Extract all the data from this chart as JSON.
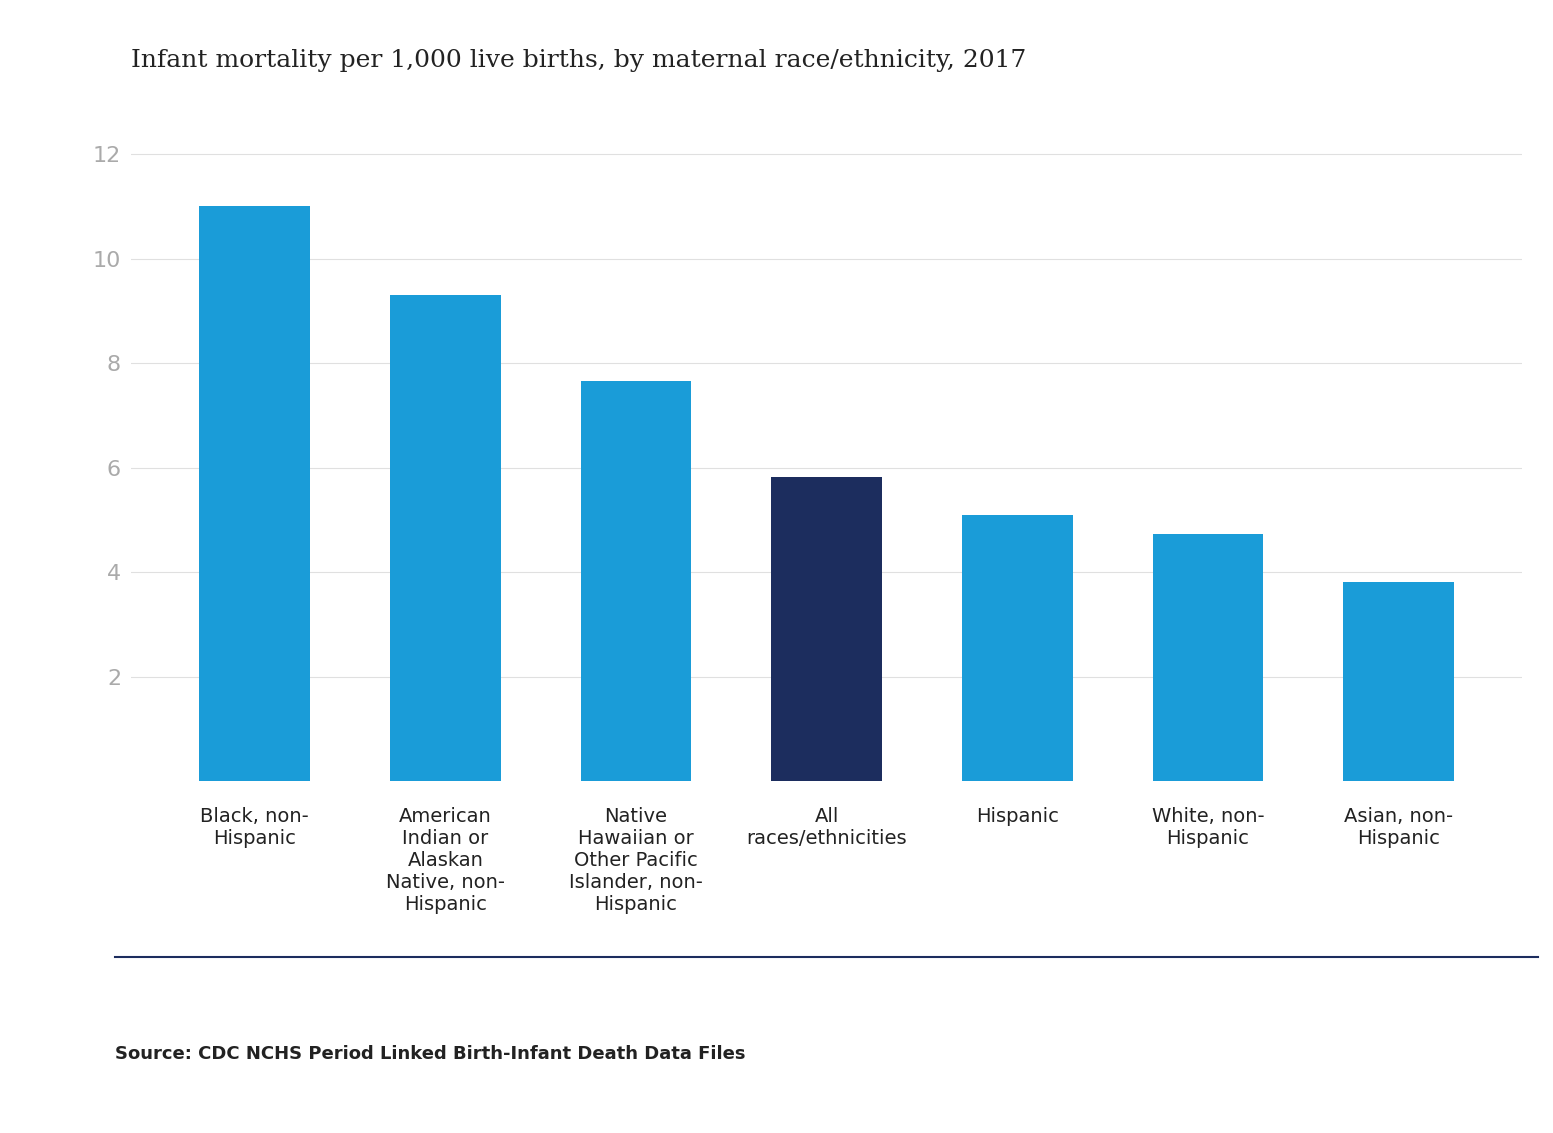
{
  "title": "Infant mortality per 1,000 live births, by maternal race/ethnicity, 2017",
  "categories": [
    "Black, non-\nHispanic",
    "American\nIndian or\nAlaskan\nNative, non-\nHispanic",
    "Native\nHawaiian or\nOther Pacific\nIslander, non-\nHispanic",
    "All\nraces/ethnicities",
    "Hispanic",
    "White, non-\nHispanic",
    "Asian, non-\nHispanic"
  ],
  "values": [
    11.0,
    9.3,
    7.65,
    5.82,
    5.1,
    4.73,
    3.82
  ],
  "bar_colors": [
    "#1a9cd8",
    "#1a9cd8",
    "#1a9cd8",
    "#1c2d5e",
    "#1a9cd8",
    "#1a9cd8",
    "#1a9cd8"
  ],
  "ylim": [
    0,
    13
  ],
  "yticks": [
    2,
    4,
    6,
    8,
    10,
    12
  ],
  "source_text": "Source: CDC NCHS Period Linked Birth-Infant Death Data Files",
  "title_fontsize": 18,
  "tick_label_fontsize": 14,
  "ytick_fontsize": 16,
  "source_fontsize": 13,
  "background_color": "#ffffff",
  "bar_width": 0.58,
  "separator_color": "#1c2d5e",
  "ytick_color": "#aaaaaa",
  "xtick_color": "#222222",
  "title_color": "#222222",
  "source_color": "#222222"
}
